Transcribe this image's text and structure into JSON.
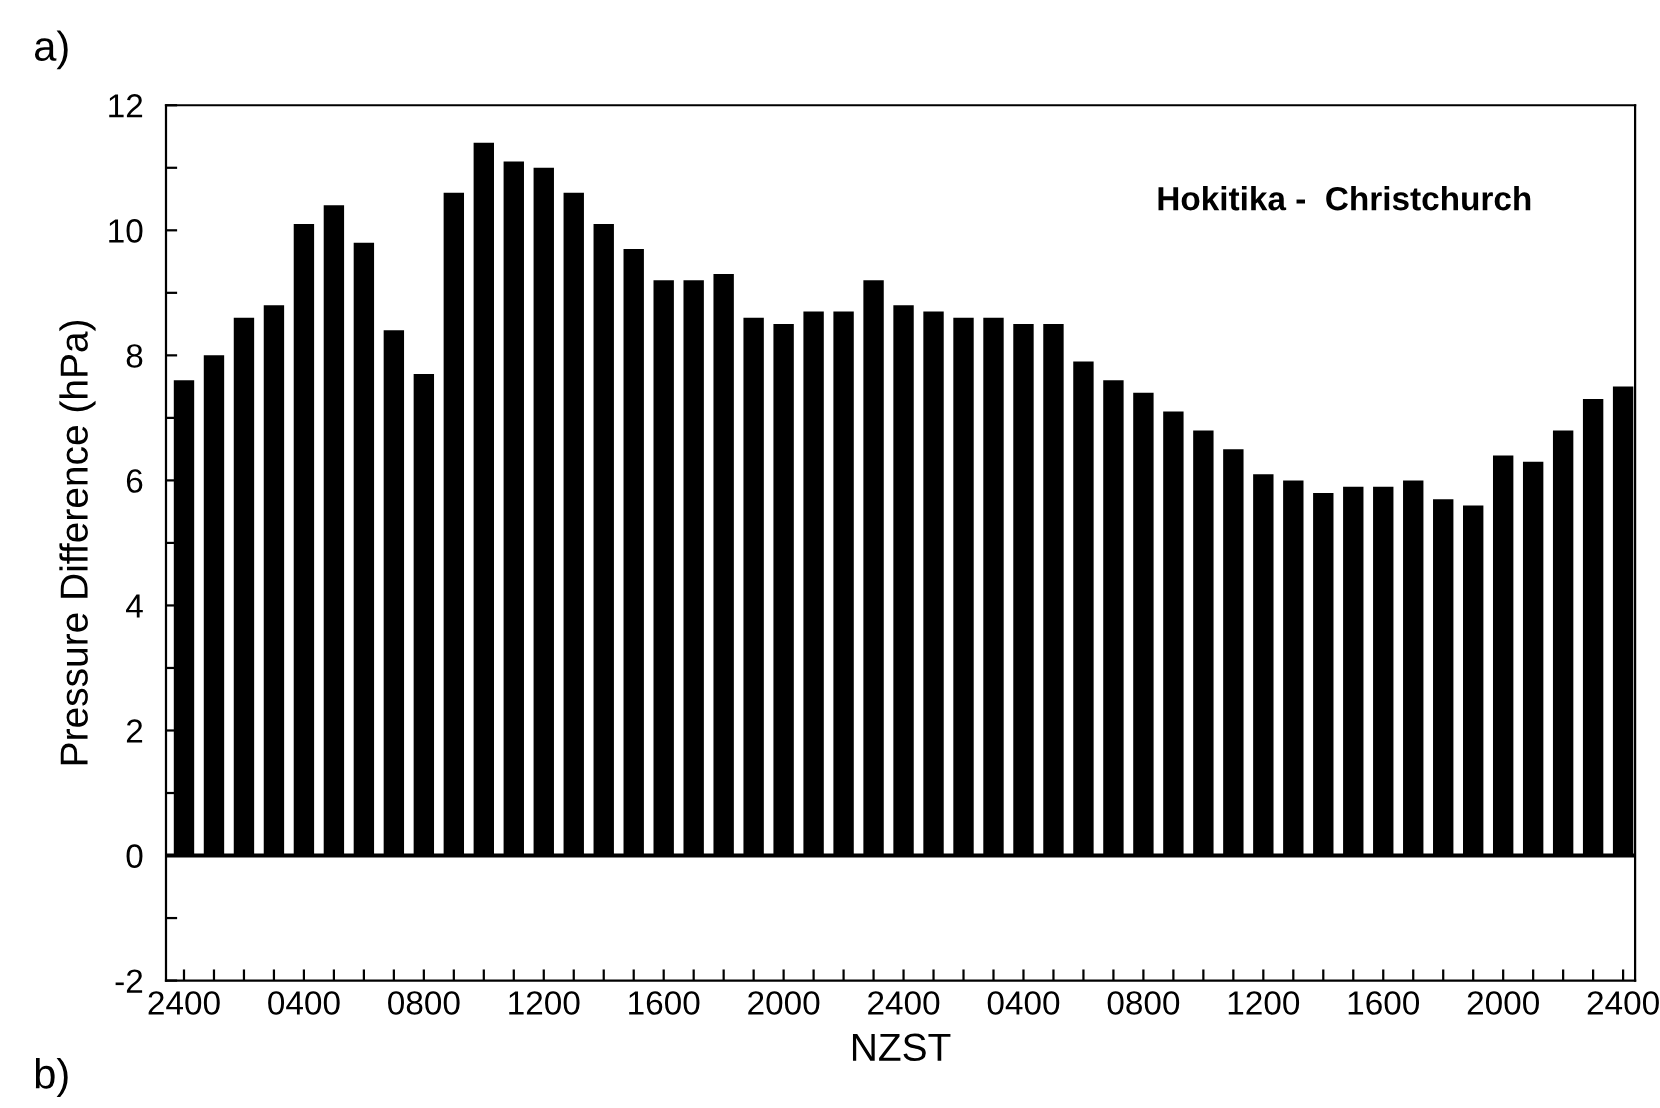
{
  "chart_data": {
    "type": "bar",
    "xlabel": "NZST",
    "ylabel": "Pressure Difference (hPa)",
    "annotations": [
      "a)",
      "Hokitika -  Christchurch",
      "b)"
    ],
    "categories": [
      "2400",
      null,
      null,
      null,
      "0400",
      null,
      null,
      null,
      "0800",
      null,
      null,
      null,
      "1200",
      null,
      null,
      null,
      "1600",
      null,
      null,
      null,
      "2000",
      null,
      null,
      null,
      "2400",
      null,
      null,
      null,
      "0400",
      null,
      null,
      null,
      "0800",
      null,
      null,
      null,
      "1200",
      null,
      null,
      null,
      "1600",
      null,
      null,
      null,
      "2000",
      null,
      null,
      null,
      "2400"
    ],
    "values": [
      7.6,
      8.0,
      8.6,
      8.8,
      10.1,
      10.4,
      9.8,
      8.4,
      7.7,
      10.6,
      11.4,
      11.1,
      11.0,
      10.6,
      10.1,
      9.7,
      9.2,
      9.2,
      9.3,
      8.6,
      8.5,
      8.7,
      8.7,
      9.2,
      8.8,
      8.7,
      8.6,
      8.6,
      8.5,
      8.5,
      7.9,
      7.6,
      7.4,
      7.1,
      6.8,
      6.5,
      6.1,
      6.0,
      5.8,
      5.9,
      5.9,
      6.0,
      5.7,
      5.6,
      6.4,
      6.3,
      6.8,
      7.3,
      7.5
    ],
    "color": "#000000",
    "ylim": [
      -2,
      12
    ],
    "yticks": [
      -2,
      {
        "value": -1,
        "label": null
      },
      0,
      {
        "value": 1,
        "label": null
      },
      2,
      {
        "value": 3,
        "label": null
      },
      4,
      {
        "value": 5,
        "label": null
      },
      6,
      {
        "value": 7,
        "label": null
      },
      8,
      {
        "value": 9,
        "label": null
      },
      10,
      {
        "value": 11,
        "label": null
      },
      12
    ],
    "ref_lines": [
      {
        "axis": "y",
        "value": 0,
        "label": null,
        "color": "#000000"
      }
    ],
    "grid": false,
    "legend": false
  }
}
